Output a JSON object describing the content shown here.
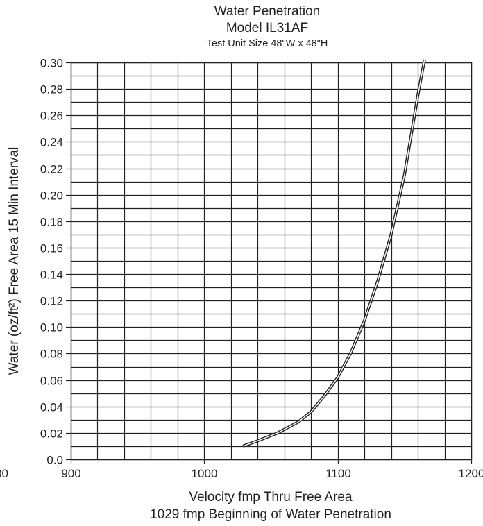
{
  "chart_data": {
    "type": "line",
    "title": "Water Penetration",
    "subtitle": "Model IL31AF",
    "subtitle2": "Test Unit Size 48\"W x 48\"H",
    "xlabel": "Velocity fmp Thru Free Area",
    "xlabel2": "1029 fmp Beginning of Water Penetration",
    "ylabel": "Water (oz/ft²) Free Area 15 Min Interval",
    "xlim": [
      900,
      1200
    ],
    "ylim": [
      0,
      0.3
    ],
    "x_ticks": [
      {
        "value": 900,
        "label": "900"
      },
      {
        "value": 1000,
        "label": "1000"
      },
      {
        "value": 1100,
        "label": "1100"
      },
      {
        "value": 1200,
        "label": "1200"
      }
    ],
    "x_minor_step": 20,
    "y_ticks": [
      {
        "value": 0.0,
        "label": "0.0"
      },
      {
        "value": 0.02,
        "label": "0.02"
      },
      {
        "value": 0.04,
        "label": "0.04"
      },
      {
        "value": 0.06,
        "label": "0.06"
      },
      {
        "value": 0.08,
        "label": "0.08"
      },
      {
        "value": 0.1,
        "label": "0.10"
      },
      {
        "value": 0.12,
        "label": "0.12"
      },
      {
        "value": 0.14,
        "label": "0.14"
      },
      {
        "value": 0.16,
        "label": "0.16"
      },
      {
        "value": 0.18,
        "label": "0.18"
      },
      {
        "value": 0.2,
        "label": "0.20"
      },
      {
        "value": 0.22,
        "label": "0.22"
      },
      {
        "value": 0.24,
        "label": "0.24"
      },
      {
        "value": 0.26,
        "label": "0.26"
      },
      {
        "value": 0.28,
        "label": "0.28"
      },
      {
        "value": 0.3,
        "label": "0.30"
      }
    ],
    "y_minor_step": 0.01,
    "clipped_tick_label": "900",
    "grid": true,
    "series": [
      {
        "x": [
          1029,
          1040,
          1055,
          1070,
          1080,
          1090,
          1100,
          1110,
          1120,
          1130,
          1140,
          1150,
          1160,
          1165
        ],
        "y": [
          0.01,
          0.014,
          0.02,
          0.028,
          0.036,
          0.048,
          0.062,
          0.081,
          0.105,
          0.135,
          0.17,
          0.215,
          0.275,
          0.305
        ]
      }
    ]
  }
}
